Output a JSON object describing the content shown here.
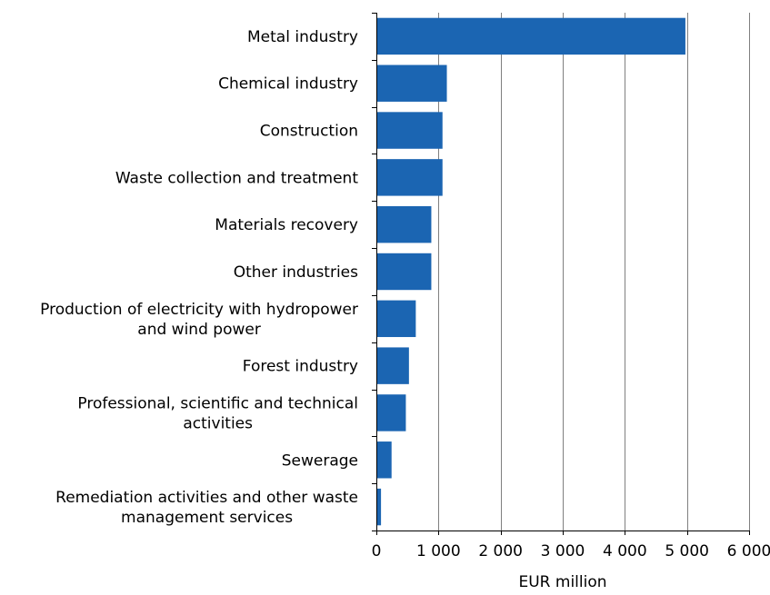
{
  "chart_data": {
    "type": "bar",
    "orientation": "horizontal",
    "categories": [
      "Metal industry",
      "Chemical industry",
      "Construction",
      "Waste collection and treatment",
      "Materials recovery",
      "Other industries",
      "Production of electricity with hydropower and wind power",
      "Forest industry",
      "Professional, scientific and technical activities",
      "Sewerage",
      "Remediation activities and other waste management services"
    ],
    "category_label_lines": [
      [
        "Metal industry"
      ],
      [
        "Chemical industry"
      ],
      [
        "Construction"
      ],
      [
        "Waste collection and treatment"
      ],
      [
        "Materials recovery"
      ],
      [
        "Other industries"
      ],
      [
        "Production of electricity with hydropower",
        "and wind power"
      ],
      [
        "Forest industry"
      ],
      [
        "Professional, scientific and technical",
        "activities"
      ],
      [
        "Sewerage"
      ],
      [
        "Remediation activities and other waste",
        "management services"
      ]
    ],
    "values": [
      4960,
      1120,
      1050,
      1050,
      870,
      870,
      620,
      510,
      460,
      230,
      60
    ],
    "xlim": [
      0,
      6000
    ],
    "xticks": [
      0,
      1000,
      2000,
      3000,
      4000,
      5000,
      6000
    ],
    "xtick_labels": [
      "0",
      "1 000",
      "2 000",
      "3 000",
      "4 000",
      "5 000",
      "6 000"
    ],
    "xlabel": "EUR million",
    "ylabel": "",
    "title": "",
    "grid": "vertical",
    "bar_color": "#1b65b2",
    "grid_color": "#7f7f7f",
    "axis_color": "#000000"
  }
}
